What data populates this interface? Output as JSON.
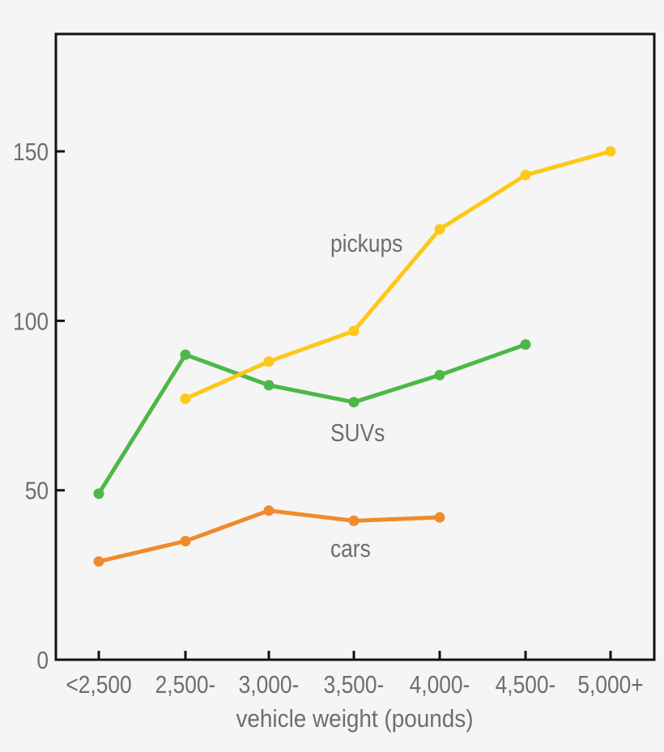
{
  "chart_data": {
    "type": "line",
    "title": "",
    "xlabel": "vehicle weight (pounds)",
    "ylabel": "",
    "categories": [
      "<2,500",
      "2,500-",
      "3,000-",
      "3,500-",
      "4,000-",
      "4,500-",
      "5,000+"
    ],
    "ylim": [
      0,
      185
    ],
    "yticks": [
      0,
      50,
      100,
      150
    ],
    "grid": false,
    "legend": "inline labels",
    "series": [
      {
        "name": "cars",
        "color": "#f08a2b",
        "values": [
          29,
          35,
          44,
          41,
          42,
          null,
          null
        ]
      },
      {
        "name": "SUVs",
        "color": "#4db848",
        "values": [
          49,
          90,
          81,
          76,
          84,
          93,
          null
        ]
      },
      {
        "name": "pickups",
        "color": "#fdc817",
        "values": [
          null,
          77,
          88,
          97,
          127,
          143,
          150
        ]
      }
    ]
  }
}
